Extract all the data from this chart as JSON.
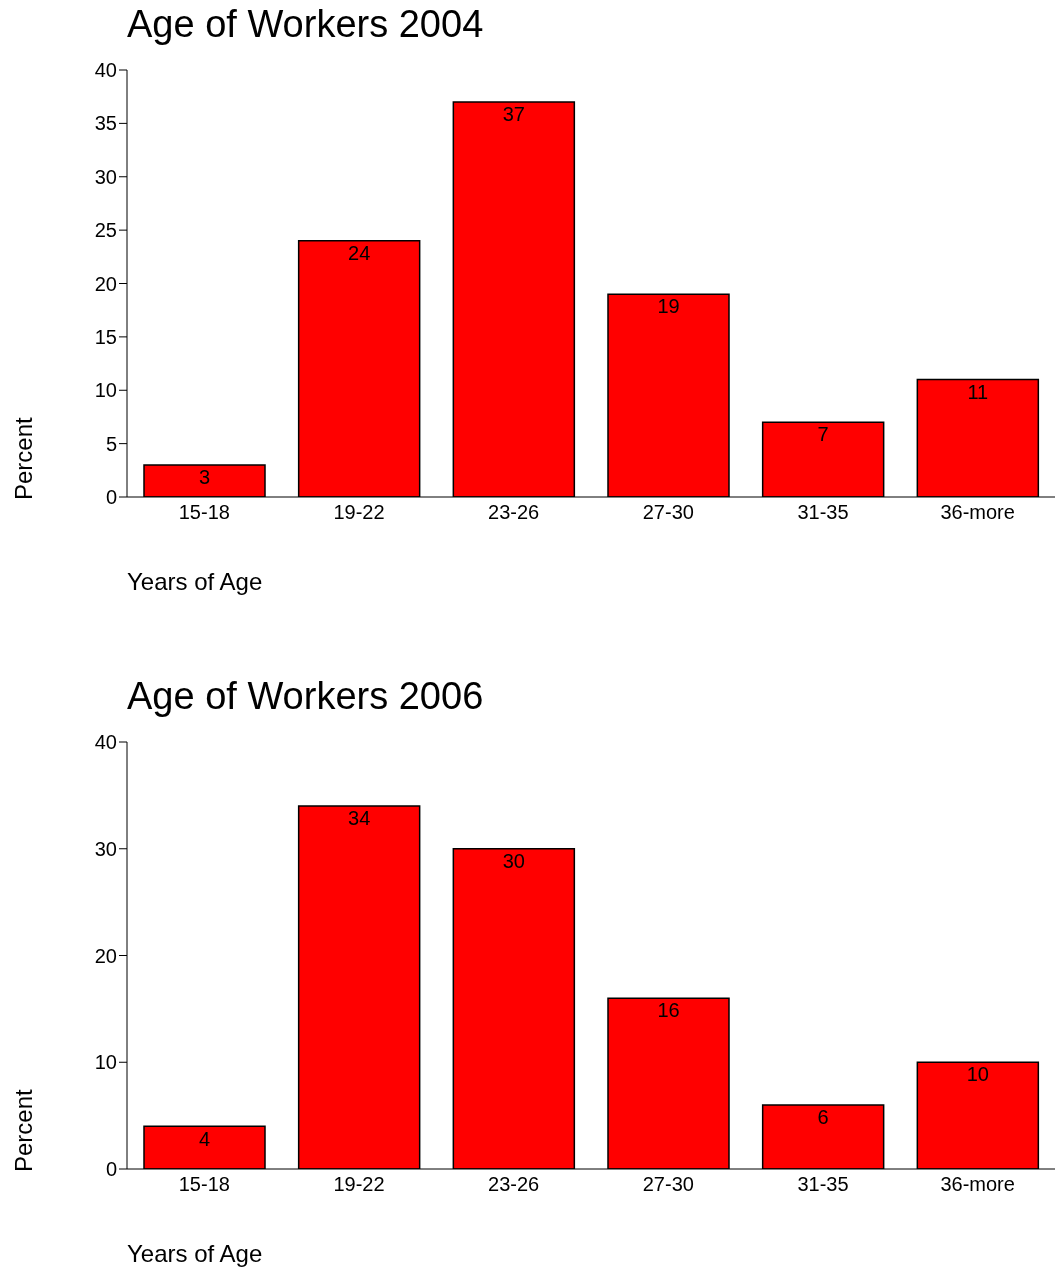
{
  "chart_data": [
    {
      "type": "bar",
      "title": "Age of Workers 2004",
      "xlabel": "Years of Age",
      "ylabel": "Percent",
      "categories": [
        "15-18",
        "19-22",
        "23-26",
        "27-30",
        "31-35",
        "36-more"
      ],
      "values": [
        3,
        24,
        37,
        19,
        7,
        11
      ],
      "color": "#ff0000",
      "ylim": [
        0,
        40
      ],
      "yticks": [
        0,
        5,
        10,
        15,
        20,
        25,
        30,
        35,
        40
      ],
      "data_labels": true
    },
    {
      "type": "bar",
      "title": "Age of Workers 2006",
      "xlabel": "Years of Age",
      "ylabel": "Percent",
      "categories": [
        "15-18",
        "19-22",
        "23-26",
        "27-30",
        "31-35",
        "36-more"
      ],
      "values": [
        4,
        34,
        30,
        16,
        6,
        10
      ],
      "color": "#ff0000",
      "ylim": [
        0,
        40
      ],
      "yticks": [
        0,
        10,
        20,
        30,
        40
      ],
      "data_labels": true
    }
  ]
}
